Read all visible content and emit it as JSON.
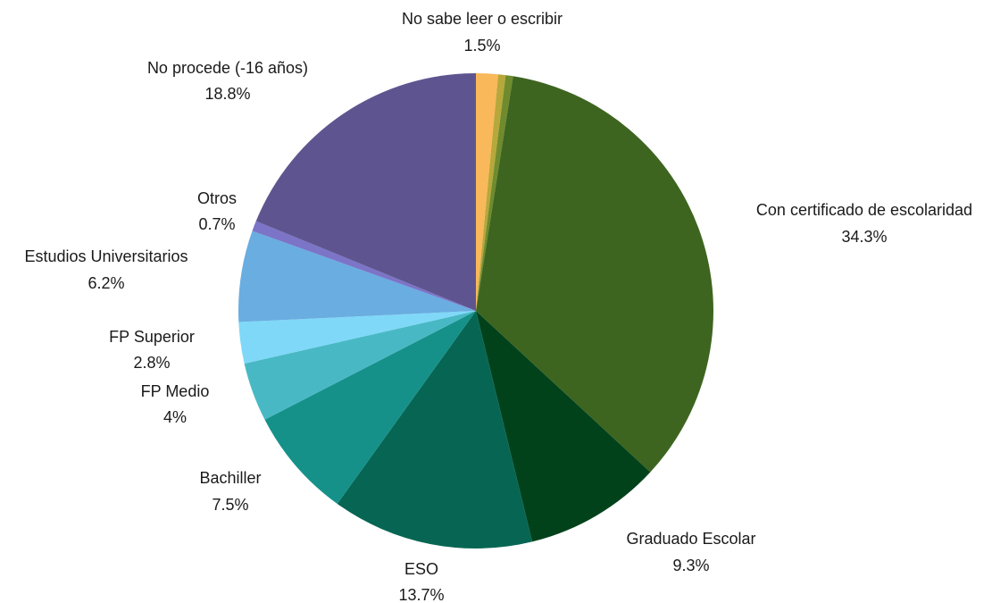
{
  "chart_data": {
    "type": "pie",
    "title": "",
    "start_angle_deg": 0,
    "direction": "clockwise",
    "slices": [
      {
        "label": "No sabe leer o escribir",
        "value": 1.5,
        "display": "1.5%",
        "color": "#f9b85a"
      },
      {
        "label": "",
        "value": 0.5,
        "display": "",
        "color": "#b6a83a"
      },
      {
        "label": "",
        "value": 0.5,
        "display": "",
        "color": "#6f8b2d"
      },
      {
        "label": "Con certificado de escolaridad",
        "value": 34.3,
        "display": "34.3%",
        "color": "#3e6520"
      },
      {
        "label": "Graduado Escolar",
        "value": 9.3,
        "display": "9.3%",
        "color": "#02421b"
      },
      {
        "label": "ESO",
        "value": 13.7,
        "display": "13.7%",
        "color": "#066653"
      },
      {
        "label": "Bachiller",
        "value": 7.5,
        "display": "7.5%",
        "color": "#16918a"
      },
      {
        "label": "FP Medio",
        "value": 4,
        "display": "4%",
        "color": "#48b9c4"
      },
      {
        "label": "FP Superior",
        "value": 2.8,
        "display": "2.8%",
        "color": "#7fd8f8"
      },
      {
        "label": "Estudios Universitarios",
        "value": 6.2,
        "display": "6.2%",
        "color": "#6aade0"
      },
      {
        "label": "Otros",
        "value": 0.7,
        "display": "0.7%",
        "color": "#7b74c7"
      },
      {
        "label": "No procede (-16 años)",
        "value": 18.8,
        "display": "18.8%",
        "color": "#5e5590"
      }
    ]
  }
}
